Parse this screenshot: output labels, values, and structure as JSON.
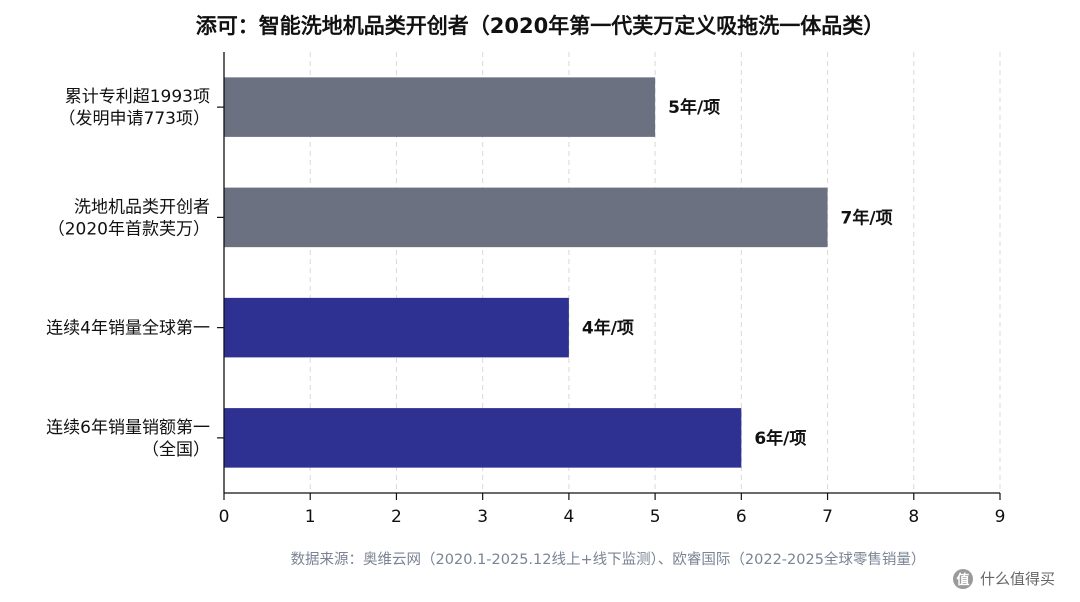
{
  "chart_data": {
    "type": "bar",
    "orientation": "horizontal",
    "title": "添可：智能洗地机品类开创者（2020年第一代芙万定义吸拖洗一体品类）",
    "categories": [
      [
        "累计专利超1993项",
        "（发明申请773项）"
      ],
      [
        "洗地机品类开创者",
        "（2020年首款芙万）"
      ],
      [
        "连续4年销量全球第一"
      ],
      [
        "连续6年销量销额第一",
        "（全国）"
      ]
    ],
    "values": [
      5,
      7,
      4,
      6
    ],
    "data_labels": [
      "5年/项",
      "7年/项",
      "4年/项",
      "6年/项"
    ],
    "bar_colors": [
      "#6b7180",
      "#6b7180",
      "#2e3192",
      "#2e3192"
    ],
    "xlim": [
      0,
      9
    ],
    "xticks": [
      0,
      1,
      2,
      3,
      4,
      5,
      6,
      7,
      8,
      9
    ],
    "grid": "vertical-dashed",
    "source": "数据来源：奥维云网（2020.1-2025.12线上+线下监测）、欧睿国际（2022-2025全球零售销量）"
  },
  "watermark": {
    "icon": "zhi-badge-icon",
    "text": "什么值得买"
  }
}
